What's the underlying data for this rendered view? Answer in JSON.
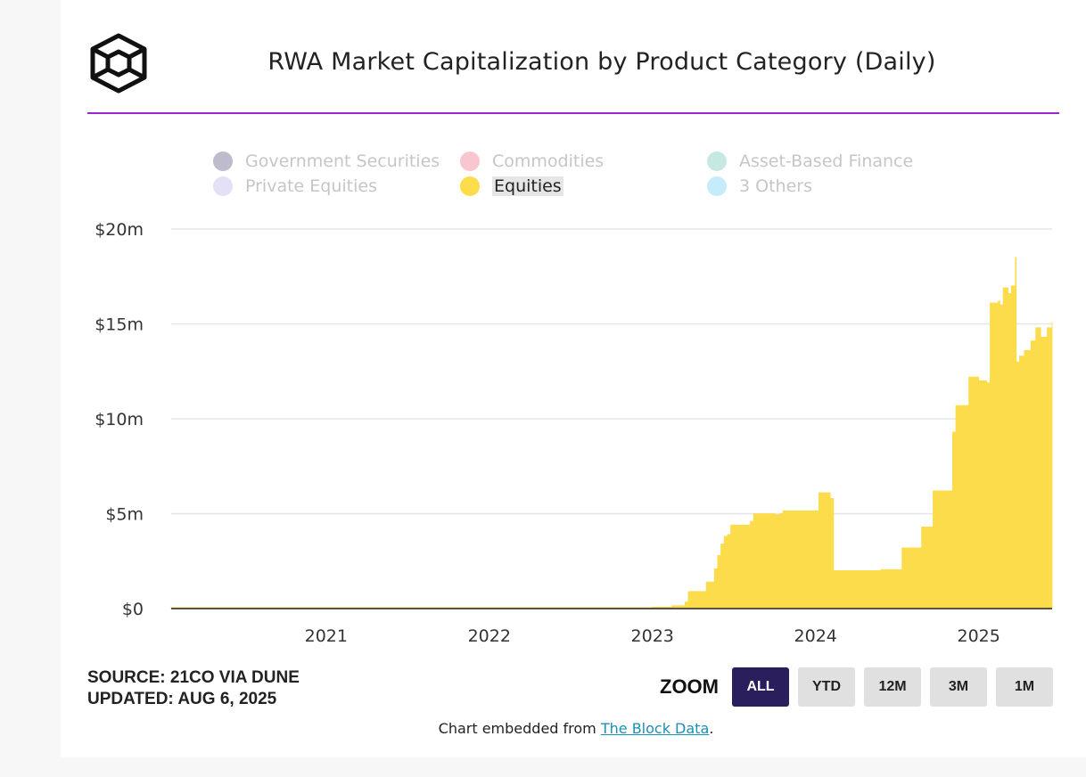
{
  "header": {
    "title": "RWA Market Capitalization by Product Category (Daily)"
  },
  "brand": {
    "rule_color": "#9b26d6",
    "logo_icon": "the-block-cube-logo"
  },
  "legend": [
    {
      "label": "Government Securities",
      "color": "#bdbbcc",
      "active": false
    },
    {
      "label": "Commodities",
      "color": "#f8c6cf",
      "active": false
    },
    {
      "label": "Asset-Based Finance",
      "color": "#c5e9e2",
      "active": false
    },
    {
      "label": "Private Equities",
      "color": "#e4e0f6",
      "active": false
    },
    {
      "label": "Equities",
      "color": "#fcdc4a",
      "active": true
    },
    {
      "label": "3 Others",
      "color": "#c6ecfb",
      "active": false
    }
  ],
  "chart_data": {
    "type": "area",
    "title": "RWA Market Capitalization by Product Category (Daily)",
    "series": [
      {
        "name": "Equities",
        "color": "#fcdc4a",
        "x": [
          2020.05,
          2021.0,
          2022.0,
          2022.8,
          2023.0,
          2023.12,
          2023.2,
          2023.22,
          2023.3,
          2023.33,
          2023.36,
          2023.38,
          2023.4,
          2023.42,
          2023.44,
          2023.46,
          2023.48,
          2023.5,
          2023.55,
          2023.6,
          2023.62,
          2023.65,
          2023.7,
          2023.75,
          2023.78,
          2023.8,
          2023.85,
          2024.0,
          2024.02,
          2024.07,
          2024.09,
          2024.11,
          2024.15,
          2024.3,
          2024.4,
          2024.42,
          2024.53,
          2024.55,
          2024.6,
          2024.65,
          2024.7,
          2024.72,
          2024.82,
          2024.84,
          2024.86,
          2024.92,
          2024.94,
          2025.0,
          2025.05,
          2025.07,
          2025.12,
          2025.13,
          2025.15,
          2025.18,
          2025.2,
          2025.22,
          2025.225,
          2025.23,
          2025.25,
          2025.28,
          2025.32,
          2025.35,
          2025.38,
          2025.42,
          2025.45
        ],
        "values": [
          0.05,
          0.05,
          0.05,
          0.05,
          0.08,
          0.15,
          0.35,
          0.9,
          0.9,
          1.4,
          1.4,
          2.1,
          2.8,
          3.4,
          3.8,
          3.9,
          4.4,
          4.4,
          4.4,
          4.6,
          5.0,
          5.0,
          5.0,
          4.95,
          5.0,
          5.15,
          5.15,
          5.15,
          6.1,
          6.1,
          5.8,
          2.0,
          2.0,
          2.0,
          2.05,
          2.05,
          3.2,
          3.2,
          3.2,
          4.3,
          4.3,
          6.2,
          6.2,
          9.3,
          10.7,
          10.7,
          12.2,
          12.0,
          11.9,
          16.1,
          16.2,
          16.0,
          16.9,
          16.6,
          17.0,
          16.7,
          18.5,
          13.0,
          13.3,
          13.6,
          14.1,
          14.8,
          14.3,
          14.8,
          15.1
        ]
      }
    ],
    "x_ticks": [
      2021,
      2022,
      2023,
      2024,
      2025
    ],
    "y_ticks": [
      0,
      5,
      10,
      15,
      20
    ],
    "y_tick_labels": [
      "$0",
      "$5m",
      "$10m",
      "$15m",
      "$20m"
    ],
    "xlim": [
      2020.05,
      2025.45
    ],
    "ylim": [
      0,
      20
    ],
    "ylabel": "",
    "xlabel": "",
    "grid": true
  },
  "footer": {
    "source_line": "SOURCE: 21CO VIA DUNE",
    "updated_line": "UPDATED: AUG 6, 2025",
    "zoom_label": "ZOOM",
    "zoom_buttons": [
      "ALL",
      "YTD",
      "12M",
      "3M",
      "1M"
    ],
    "embed_prefix": "Chart embedded from ",
    "embed_link": "The Block Data",
    "embed_suffix": "."
  }
}
